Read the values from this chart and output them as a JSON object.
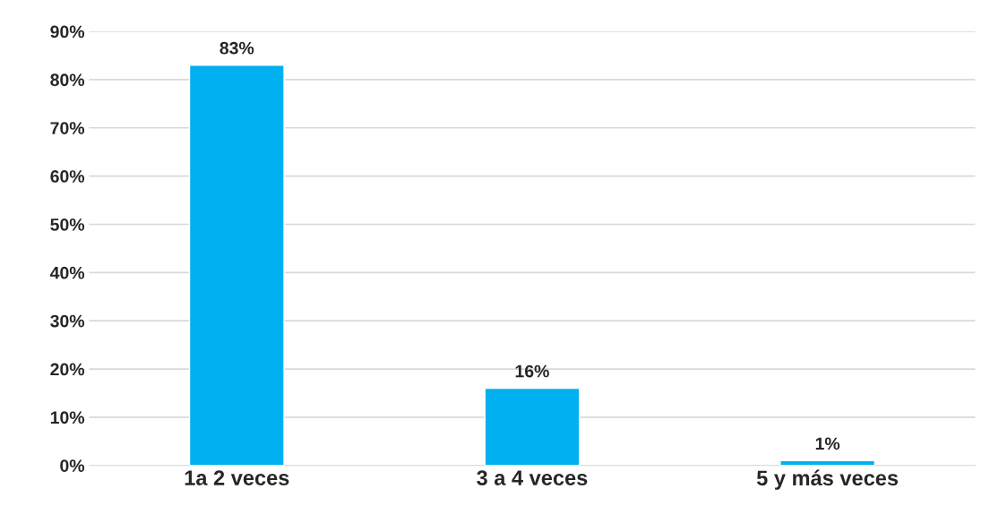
{
  "chart_data": {
    "type": "bar",
    "categories": [
      "1a 2 veces",
      "3 a 4 veces",
      "5 y más veces"
    ],
    "values": [
      83,
      16,
      1
    ],
    "color": "#00b0f0",
    "value_labels": [
      "83%",
      "16%",
      "1%"
    ],
    "ylim": [
      0,
      90
    ],
    "yticks": [
      {
        "value": 0,
        "label": "0%"
      },
      {
        "value": 10,
        "label": "10%"
      },
      {
        "value": 20,
        "label": "20%"
      },
      {
        "value": 30,
        "label": "30%"
      },
      {
        "value": 40,
        "label": "40%"
      },
      {
        "value": 50,
        "label": "50%"
      },
      {
        "value": 60,
        "label": "60%"
      },
      {
        "value": 70,
        "label": "70%"
      },
      {
        "value": 80,
        "label": "80%"
      },
      {
        "value": 90,
        "label": "90%"
      }
    ],
    "grid": "y"
  }
}
